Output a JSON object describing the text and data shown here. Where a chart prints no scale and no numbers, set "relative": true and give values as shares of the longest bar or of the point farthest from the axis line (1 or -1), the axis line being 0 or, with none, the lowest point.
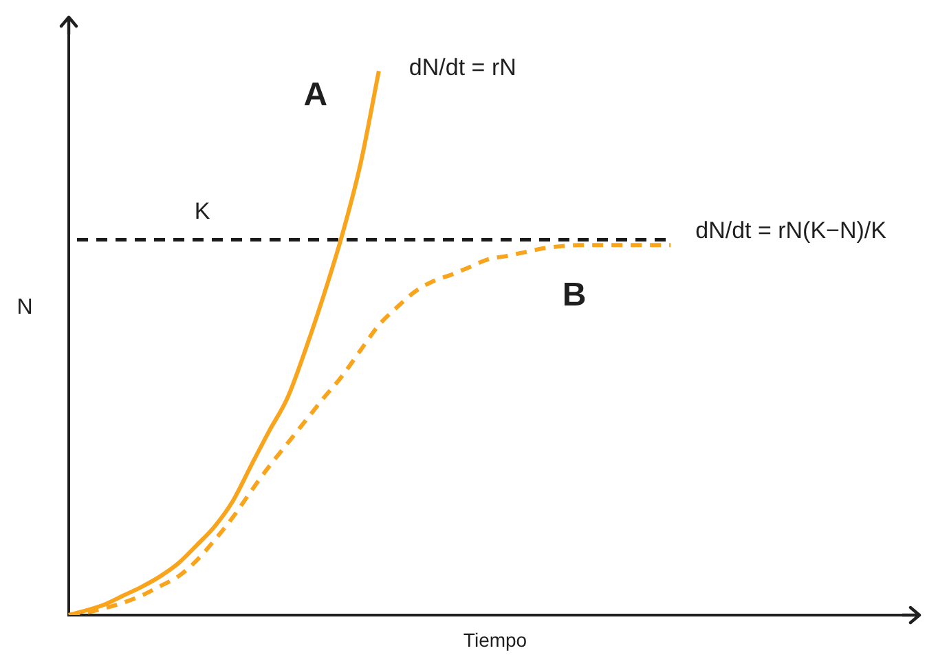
{
  "chart_data": {
    "type": "line",
    "xlabel": "Tiempo",
    "ylabel": "N",
    "relative": true,
    "tick_labels": false,
    "categories": [
      null,
      null,
      null,
      null,
      null,
      null,
      null,
      null,
      null,
      null,
      null,
      null,
      null,
      null,
      null,
      null,
      null,
      null,
      null,
      null,
      null,
      null,
      null,
      null,
      null,
      null,
      null,
      null,
      null,
      null,
      null,
      null,
      null,
      null,
      null,
      null,
      null,
      null,
      null,
      null,
      null,
      null,
      null,
      null,
      null,
      null,
      null
    ],
    "series": [
      {
        "name": "A",
        "color": "#f8a51d",
        "line_style": "solid",
        "values": [
          0,
          0.009,
          0.02,
          0.036,
          0.052,
          0.071,
          0.095,
          0.128,
          0.163,
          0.21,
          0.275,
          0.339,
          0.4,
          0.49,
          0.59,
          0.7,
          0.83,
          1,
          null,
          null,
          null,
          null,
          null,
          null,
          null,
          null,
          null,
          null,
          null,
          null,
          null,
          null,
          null,
          null,
          null,
          null,
          null,
          null,
          null,
          null,
          null,
          null,
          null,
          null,
          null,
          null,
          null
        ]
      },
      {
        "name": "B",
        "color": "#f8a51d",
        "line_style": "dashed",
        "values": [
          0,
          0.005,
          0.013,
          0.023,
          0.036,
          0.053,
          0.071,
          0.1,
          0.138,
          0.18,
          0.228,
          0.274,
          0.316,
          0.358,
          0.4,
          0.44,
          0.487,
          0.533,
          0.566,
          0.595,
          0.614,
          0.626,
          0.64,
          0.654,
          0.66,
          0.667,
          0.674,
          0.678,
          0.68,
          0.68,
          0.68,
          0.68,
          0.68,
          0.68,
          null,
          null,
          null,
          null,
          null,
          null,
          null,
          null,
          null,
          null,
          null,
          null,
          null
        ]
      }
    ],
    "ref_lines": [
      {
        "axis": "y",
        "value": 0.69,
        "label": "K",
        "color": "#1a1a1a",
        "line_style": "dashed"
      }
    ],
    "annotations": [
      "dN/dt = rN",
      "dN/dt = rN(K−N)/K"
    ]
  }
}
